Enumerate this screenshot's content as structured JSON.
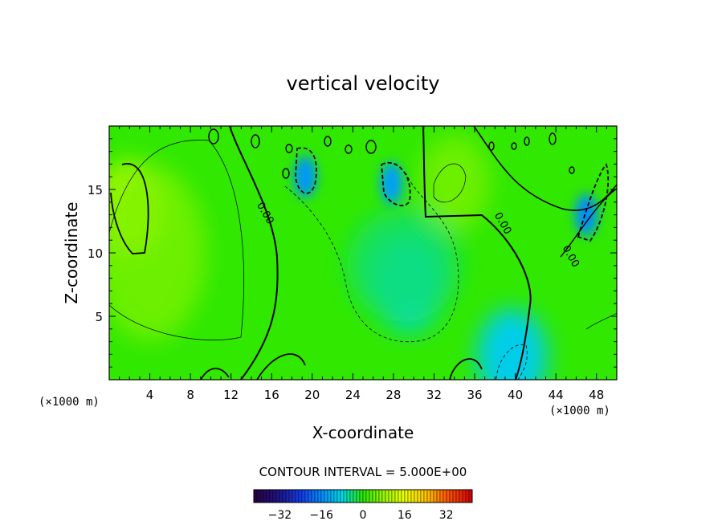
{
  "chart_data": {
    "type": "heatmap",
    "title": "vertical velocity",
    "xlabel": "X-coordinate",
    "ylabel": "Z-coordinate",
    "x_unit_label": "(×1000 m)",
    "x_unit_label_right": "(×1000 m)",
    "xlim": [
      0,
      50
    ],
    "ylim": [
      0,
      20
    ],
    "x_ticks": [
      4,
      8,
      12,
      16,
      20,
      24,
      28,
      32,
      36,
      40,
      44,
      48
    ],
    "y_ticks": [
      5,
      10,
      15
    ],
    "contour_interval_text": "CONTOUR INTERVAL = 5.000E+00",
    "colorbar": {
      "range": [
        -42,
        42
      ],
      "ticks": [
        -32,
        -16,
        0,
        16,
        32
      ],
      "tick_labels": [
        "−32",
        "−16",
        "0",
        "16",
        "32"
      ]
    },
    "contour_labels": [
      {
        "text": "0.00",
        "x": 15.1,
        "y": 13.0
      },
      {
        "text": "0.00",
        "x": 38.5,
        "y": 12.2
      },
      {
        "text": "0.00",
        "x": 45.2,
        "y": 9.6
      }
    ],
    "field_features": [
      {
        "label": "updraft",
        "x": 2.0,
        "y": 13.5,
        "value": 10
      },
      {
        "label": "downdraft",
        "x": 19.3,
        "y": 16.0,
        "value": -15
      },
      {
        "label": "downdraft",
        "x": 27.8,
        "y": 15.5,
        "value": -14
      },
      {
        "label": "downdraft",
        "x": 47.0,
        "y": 13.0,
        "value": -16
      },
      {
        "label": "downdraft",
        "x": 39.7,
        "y": 1.8,
        "value": -9
      },
      {
        "label": "downdraft",
        "x": 29.5,
        "y": 7.5,
        "value": -7
      },
      {
        "label": "updraft",
        "x": 34.0,
        "y": 15.5,
        "value": 5
      }
    ],
    "colors": {
      "zero": "#2fe600",
      "positive": "#d8ff00",
      "negative": "#00ccff"
    }
  }
}
